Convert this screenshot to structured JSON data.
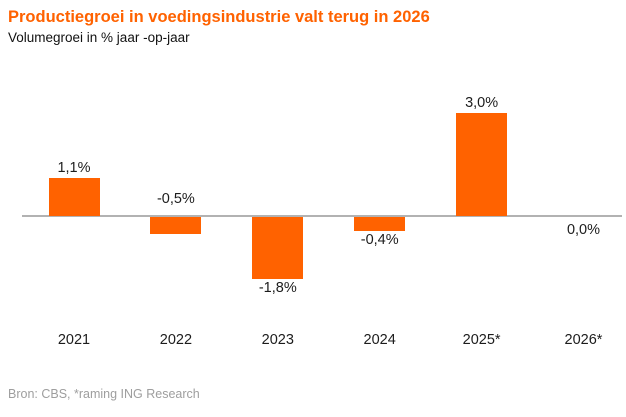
{
  "header": {
    "title": "Productiegroei in voedingsindustrie valt terug in 2026",
    "subtitle": "Volumegroei in % jaar -op-jaar"
  },
  "source": {
    "text": "Bron: CBS, *raming ING Research"
  },
  "chart_data": {
    "type": "bar",
    "categories": [
      "2021",
      "2022",
      "2023",
      "2024",
      "2025*",
      "2026*"
    ],
    "values": [
      1.1,
      -0.5,
      -1.8,
      -0.4,
      3.0,
      0.0
    ],
    "value_labels": [
      "1,1%",
      "-0,5%",
      "-1,8%",
      "-0,4%",
      "3,0%",
      "0,0%"
    ],
    "label_positions": [
      "above-bar",
      "above-axis",
      "below-bar",
      "below-bar",
      "above-bar",
      "below-axis"
    ],
    "title": "Productiegroei in voedingsindustrie valt terug in 2026",
    "subtitle": "Volumegroei in % jaar -op-jaar",
    "xlabel": "",
    "ylabel": "Volumegroei in % jaar-op-jaar",
    "ylim": [
      -2.5,
      3.5
    ],
    "grid": false,
    "legend": false,
    "bar_color": "#FF6200",
    "title_color": "#FF6200",
    "axis_color": "#B2B2B2",
    "label_color": "#1C1C1C",
    "source_color": "#9E9E9E"
  }
}
